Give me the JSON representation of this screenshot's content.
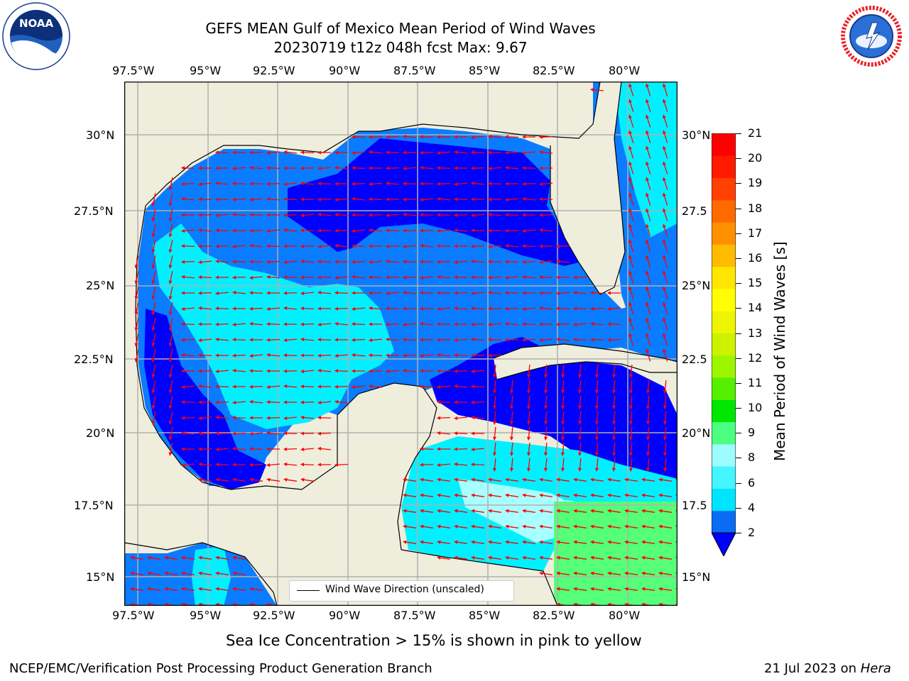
{
  "title_line1": "GEFS MEAN Gulf of Mexico Mean Period of Wind Waves",
  "title_line2": "20230719 t12z 048h fcst   Max: 9.67",
  "logos": {
    "left": "NOAA",
    "right": "NATIONAL WEATHER SERVICE"
  },
  "x_ticks": [
    "97.5°W",
    "95°W",
    "92.5°W",
    "90°W",
    "87.5°W",
    "85°W",
    "82.5°W",
    "80°W"
  ],
  "y_ticks_left": [
    "30°N",
    "27.5°N",
    "25°N",
    "22.5°N",
    "20°N",
    "17.5°N",
    "15°N"
  ],
  "y_ticks_right": [
    "30°N",
    "27.5",
    "25°N",
    "22.5",
    "20°N",
    "17.5",
    "15°N"
  ],
  "legend": {
    "label": "Wind Wave Direction (unscaled)"
  },
  "colorbar": {
    "label": "Mean Period of Wind Waves [s]",
    "ticks": [
      "21",
      "20",
      "19",
      "18",
      "17",
      "16",
      "15",
      "14",
      "13",
      "12",
      "11",
      "10",
      "9",
      "8",
      "6",
      "4",
      "2"
    ],
    "colors": [
      "#0a6cf5",
      "#00e5ff",
      "#45f5ff",
      "#9efcff",
      "#4dff80",
      "#00e600",
      "#55f000",
      "#9ef500",
      "#ccf200",
      "#eef500",
      "#ffff00",
      "#ffe600",
      "#ffbb00",
      "#ff9000",
      "#ff6a00",
      "#ff4000",
      "#ff1a00",
      "#ff0000"
    ],
    "extend_color": "#0000ff"
  },
  "subtitle": "Sea Ice Concentration > 15% is shown in pink to yellow",
  "footer_left": "NCEP/EMC/Verification Post Processing Product Generation Branch",
  "footer_right_prefix": "21 Jul 2023 on ",
  "footer_right_host": "Hera",
  "colors": {
    "land": "#efeddc",
    "deep_blue": "#0000ff",
    "blue": "#0a7cff",
    "cyan": "#00f0ff",
    "light_cyan": "#a8ffff",
    "green": "#55ff77",
    "arrow": "#ff0000"
  }
}
